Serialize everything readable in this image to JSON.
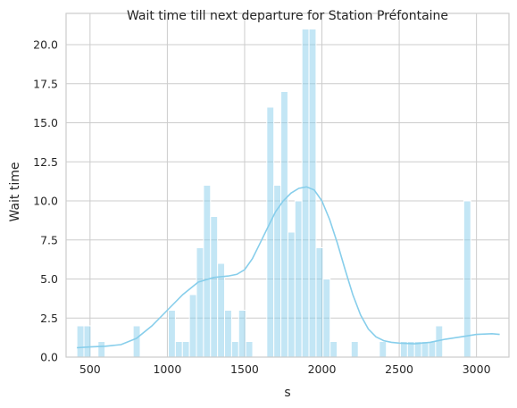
{
  "chart_data": {
    "type": "bar",
    "title": "Wait time till next departure for Station Préfontaine",
    "xlabel": "s",
    "ylabel": "Wait time",
    "xlim": [
      345,
      3210
    ],
    "ylim": [
      0,
      22.0
    ],
    "xticks": [
      500,
      1000,
      1500,
      2000,
      2500,
      3000
    ],
    "yticks": [
      0.0,
      2.5,
      5.0,
      7.5,
      10.0,
      12.5,
      15.0,
      17.5,
      20.0
    ],
    "xtick_labels": [
      "500",
      "1000",
      "1500",
      "2000",
      "2500",
      "3000"
    ],
    "ytick_labels": [
      "0.0",
      "2.5",
      "5.0",
      "7.5",
      "10.0",
      "12.5",
      "15.0",
      "17.5",
      "20.0"
    ],
    "grid": true,
    "bar_color": "#87ceeb",
    "kde_color": "#87ceeb",
    "bin_start": 415,
    "bin_width": 45.5,
    "values": [
      2,
      2,
      0,
      1,
      0,
      0,
      0,
      0,
      2,
      0,
      0,
      0,
      0,
      3,
      1,
      1,
      4,
      7,
      11,
      9,
      6,
      3,
      1,
      3,
      1,
      0,
      0,
      16,
      11,
      17,
      8,
      10,
      21,
      21,
      7,
      5,
      1,
      0,
      0,
      1,
      0,
      0,
      0,
      1,
      0,
      0,
      1,
      1,
      1,
      1,
      1,
      2,
      0,
      0,
      0,
      10
    ],
    "kde": [
      [
        415,
        0.6
      ],
      [
        500,
        0.65
      ],
      [
        600,
        0.7
      ],
      [
        700,
        0.8
      ],
      [
        800,
        1.2
      ],
      [
        900,
        2.0
      ],
      [
        1000,
        3.0
      ],
      [
        1100,
        4.0
      ],
      [
        1200,
        4.8
      ],
      [
        1300,
        5.1
      ],
      [
        1400,
        5.2
      ],
      [
        1450,
        5.3
      ],
      [
        1500,
        5.6
      ],
      [
        1550,
        6.3
      ],
      [
        1600,
        7.3
      ],
      [
        1650,
        8.3
      ],
      [
        1700,
        9.3
      ],
      [
        1750,
        10.0
      ],
      [
        1800,
        10.5
      ],
      [
        1850,
        10.8
      ],
      [
        1900,
        10.9
      ],
      [
        1950,
        10.7
      ],
      [
        2000,
        10.0
      ],
      [
        2050,
        8.8
      ],
      [
        2100,
        7.3
      ],
      [
        2150,
        5.6
      ],
      [
        2200,
        4.0
      ],
      [
        2250,
        2.7
      ],
      [
        2300,
        1.8
      ],
      [
        2350,
        1.3
      ],
      [
        2400,
        1.05
      ],
      [
        2450,
        0.95
      ],
      [
        2500,
        0.9
      ],
      [
        2600,
        0.85
      ],
      [
        2700,
        0.95
      ],
      [
        2800,
        1.15
      ],
      [
        2900,
        1.3
      ],
      [
        3000,
        1.45
      ],
      [
        3100,
        1.5
      ],
      [
        3150,
        1.45
      ]
    ]
  }
}
